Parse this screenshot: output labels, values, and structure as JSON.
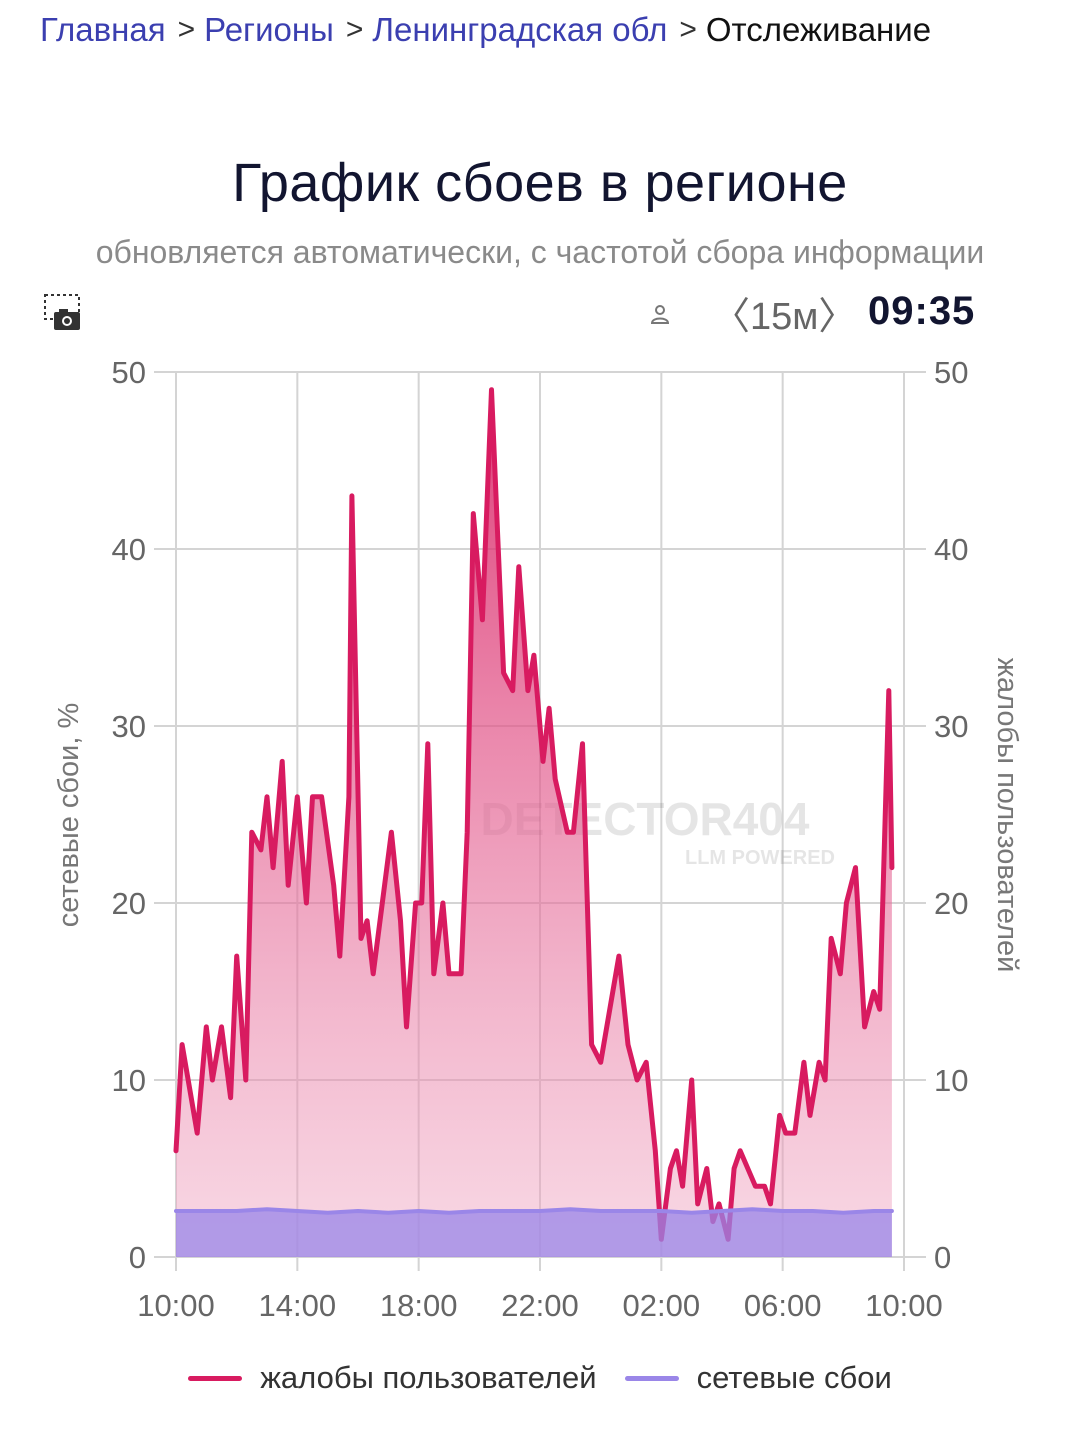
{
  "breadcrumb": {
    "items": [
      "Главная",
      "Регионы",
      "Ленинградская обл"
    ],
    "current": "Отслеживание"
  },
  "header": {
    "title": "График сбоев в регионе",
    "subtitle": "обновляется автоматически, с частотой сбора информации"
  },
  "toolbar": {
    "screenshot_icon": "camera-icon",
    "user_icon": "user-icon",
    "interval": "〈15м〉",
    "time": "09:35"
  },
  "watermark": {
    "text": "DETECTOR404",
    "subtext": "LLM POWERED"
  },
  "colors": {
    "complaints": "#d81b60",
    "network": "#9a86e8",
    "grid": "#d4d4d4",
    "axis_text": "#666666"
  },
  "chart_data": {
    "type": "area",
    "title": "График сбоев в регионе",
    "subtitle": "обновляется автоматически, с частотой сбора информации",
    "ylabel_left": "сетевые сбои, %",
    "ylabel_right": "жалобы пользователей",
    "ylim": [
      0,
      50
    ],
    "yticks": [
      "0",
      "10",
      "20",
      "30",
      "40",
      "50"
    ],
    "x_range_hours": [
      0,
      24
    ],
    "xticks": [
      {
        "hour": 0,
        "label": "10:00"
      },
      {
        "hour": 4,
        "label": "14:00"
      },
      {
        "hour": 8,
        "label": "18:00"
      },
      {
        "hour": 12,
        "label": "22:00"
      },
      {
        "hour": 16,
        "label": "02:00"
      },
      {
        "hour": 20,
        "label": "06:00"
      },
      {
        "hour": 24,
        "label": "10:00"
      }
    ],
    "grid": true,
    "legend_position": "bottom",
    "series": [
      {
        "name": "жалобы пользователей",
        "axis": "right",
        "points": [
          [
            0.0,
            6
          ],
          [
            0.2,
            12
          ],
          [
            0.5,
            9
          ],
          [
            0.7,
            7
          ],
          [
            1.0,
            13
          ],
          [
            1.2,
            10
          ],
          [
            1.5,
            13
          ],
          [
            1.8,
            9
          ],
          [
            2.0,
            17
          ],
          [
            2.3,
            10
          ],
          [
            2.5,
            24
          ],
          [
            2.8,
            23
          ],
          [
            3.0,
            26
          ],
          [
            3.2,
            22
          ],
          [
            3.5,
            28
          ],
          [
            3.7,
            21
          ],
          [
            4.0,
            26
          ],
          [
            4.3,
            20
          ],
          [
            4.5,
            26
          ],
          [
            4.8,
            26
          ],
          [
            5.2,
            21
          ],
          [
            5.4,
            17
          ],
          [
            5.7,
            26
          ],
          [
            5.8,
            43
          ],
          [
            6.1,
            18
          ],
          [
            6.3,
            19
          ],
          [
            6.5,
            16
          ],
          [
            6.8,
            20
          ],
          [
            7.1,
            24
          ],
          [
            7.4,
            19
          ],
          [
            7.6,
            13
          ],
          [
            7.9,
            20
          ],
          [
            8.1,
            20
          ],
          [
            8.3,
            29
          ],
          [
            8.5,
            16
          ],
          [
            8.8,
            20
          ],
          [
            9.0,
            16
          ],
          [
            9.4,
            16
          ],
          [
            9.6,
            24
          ],
          [
            9.8,
            42
          ],
          [
            10.1,
            36
          ],
          [
            10.4,
            49
          ],
          [
            10.6,
            41
          ],
          [
            10.8,
            33
          ],
          [
            11.1,
            32
          ],
          [
            11.3,
            39
          ],
          [
            11.6,
            32
          ],
          [
            11.8,
            34
          ],
          [
            12.1,
            28
          ],
          [
            12.3,
            31
          ],
          [
            12.5,
            27
          ],
          [
            12.9,
            24
          ],
          [
            13.1,
            24
          ],
          [
            13.4,
            29
          ],
          [
            13.7,
            12
          ],
          [
            14.0,
            11
          ],
          [
            14.3,
            14
          ],
          [
            14.6,
            17
          ],
          [
            14.9,
            12
          ],
          [
            15.2,
            10
          ],
          [
            15.5,
            11
          ],
          [
            15.8,
            6
          ],
          [
            16.0,
            1
          ],
          [
            16.3,
            5
          ],
          [
            16.5,
            6
          ],
          [
            16.7,
            4
          ],
          [
            17.0,
            10
          ],
          [
            17.2,
            3
          ],
          [
            17.5,
            5
          ],
          [
            17.7,
            2
          ],
          [
            17.9,
            3
          ],
          [
            18.2,
            1
          ],
          [
            18.4,
            5
          ],
          [
            18.6,
            6
          ],
          [
            19.1,
            4
          ],
          [
            19.4,
            4
          ],
          [
            19.6,
            3
          ],
          [
            19.9,
            8
          ],
          [
            20.1,
            7
          ],
          [
            20.4,
            7
          ],
          [
            20.7,
            11
          ],
          [
            20.9,
            8
          ],
          [
            21.2,
            11
          ],
          [
            21.4,
            10
          ],
          [
            21.6,
            18
          ],
          [
            21.9,
            16
          ],
          [
            22.1,
            20
          ],
          [
            22.4,
            22
          ],
          [
            22.7,
            13
          ],
          [
            23.0,
            15
          ],
          [
            23.2,
            14
          ],
          [
            23.5,
            32
          ],
          [
            23.6,
            22
          ]
        ]
      },
      {
        "name": "сетевые сбои",
        "axis": "left",
        "points": [
          [
            0.0,
            2.6
          ],
          [
            1.0,
            2.6
          ],
          [
            2.0,
            2.6
          ],
          [
            3.0,
            2.7
          ],
          [
            4.0,
            2.6
          ],
          [
            5.0,
            2.5
          ],
          [
            6.0,
            2.6
          ],
          [
            7.0,
            2.5
          ],
          [
            8.0,
            2.6
          ],
          [
            9.0,
            2.5
          ],
          [
            10.0,
            2.6
          ],
          [
            11.0,
            2.6
          ],
          [
            12.0,
            2.6
          ],
          [
            13.0,
            2.7
          ],
          [
            14.0,
            2.6
          ],
          [
            15.0,
            2.6
          ],
          [
            16.0,
            2.6
          ],
          [
            17.0,
            2.5
          ],
          [
            18.0,
            2.6
          ],
          [
            19.0,
            2.7
          ],
          [
            20.0,
            2.6
          ],
          [
            21.0,
            2.6
          ],
          [
            22.0,
            2.5
          ],
          [
            23.0,
            2.6
          ],
          [
            23.6,
            2.6
          ]
        ]
      }
    ]
  },
  "legend": {
    "items": [
      {
        "label": "жалобы пользователей",
        "color": "#d81b60"
      },
      {
        "label": "сетевые сбои",
        "color": "#9a86e8"
      }
    ]
  }
}
